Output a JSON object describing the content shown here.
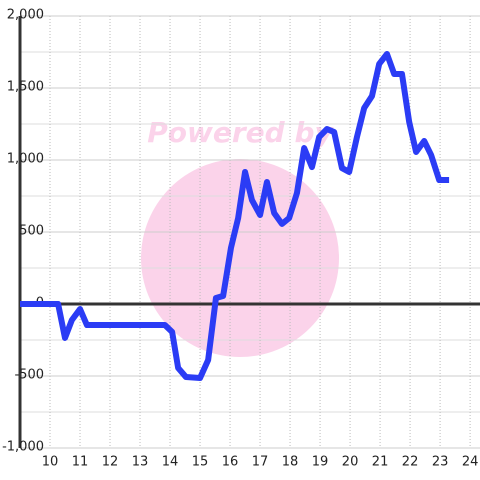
{
  "chart_data": {
    "type": "line",
    "watermark": "Powered by",
    "x": [
      9,
      10.27,
      10.5,
      10.73,
      11.0,
      11.23,
      13.83,
      14.07,
      14.27,
      14.53,
      15.0,
      15.27,
      15.53,
      15.77,
      16.03,
      16.27,
      16.5,
      16.73,
      17.0,
      17.23,
      17.47,
      17.73,
      17.97,
      18.23,
      18.47,
      18.73,
      18.97,
      19.23,
      19.47,
      19.73,
      19.97,
      20.23,
      20.47,
      20.73,
      20.97,
      21.23,
      21.47,
      21.73,
      21.97,
      22.2,
      22.47,
      22.7,
      22.97,
      23.3
    ],
    "series": [
      {
        "color": "#2b3cf5",
        "values": [
          0,
          0,
          -236,
          -111,
          -35,
          -146,
          -146,
          -194,
          -444,
          -507,
          -514,
          -389,
          42,
          56,
          389,
          597,
          917,
          722,
          618,
          847,
          632,
          556,
          597,
          771,
          1083,
          951,
          1160,
          1215,
          1194,
          944,
          917,
          1160,
          1361,
          1444,
          1667,
          1736,
          1597,
          1597,
          1264,
          1056,
          1132,
          1035,
          861,
          861
        ]
      }
    ],
    "xlim": [
      9,
      24.33
    ],
    "xticks": [
      10,
      11,
      12,
      13,
      14,
      15,
      16,
      17,
      18,
      19,
      20,
      21,
      22,
      23,
      24
    ],
    "ylim": [
      -1000,
      2000
    ],
    "yticks": [
      {
        "value": -1000,
        "label": "-1,000"
      },
      -500,
      0,
      500,
      {
        "value": 1000,
        "label": "1,000"
      },
      {
        "value": 1500,
        "label": "1,500"
      },
      {
        "value": 2000,
        "label": "2,000"
      }
    ],
    "grid": true
  }
}
